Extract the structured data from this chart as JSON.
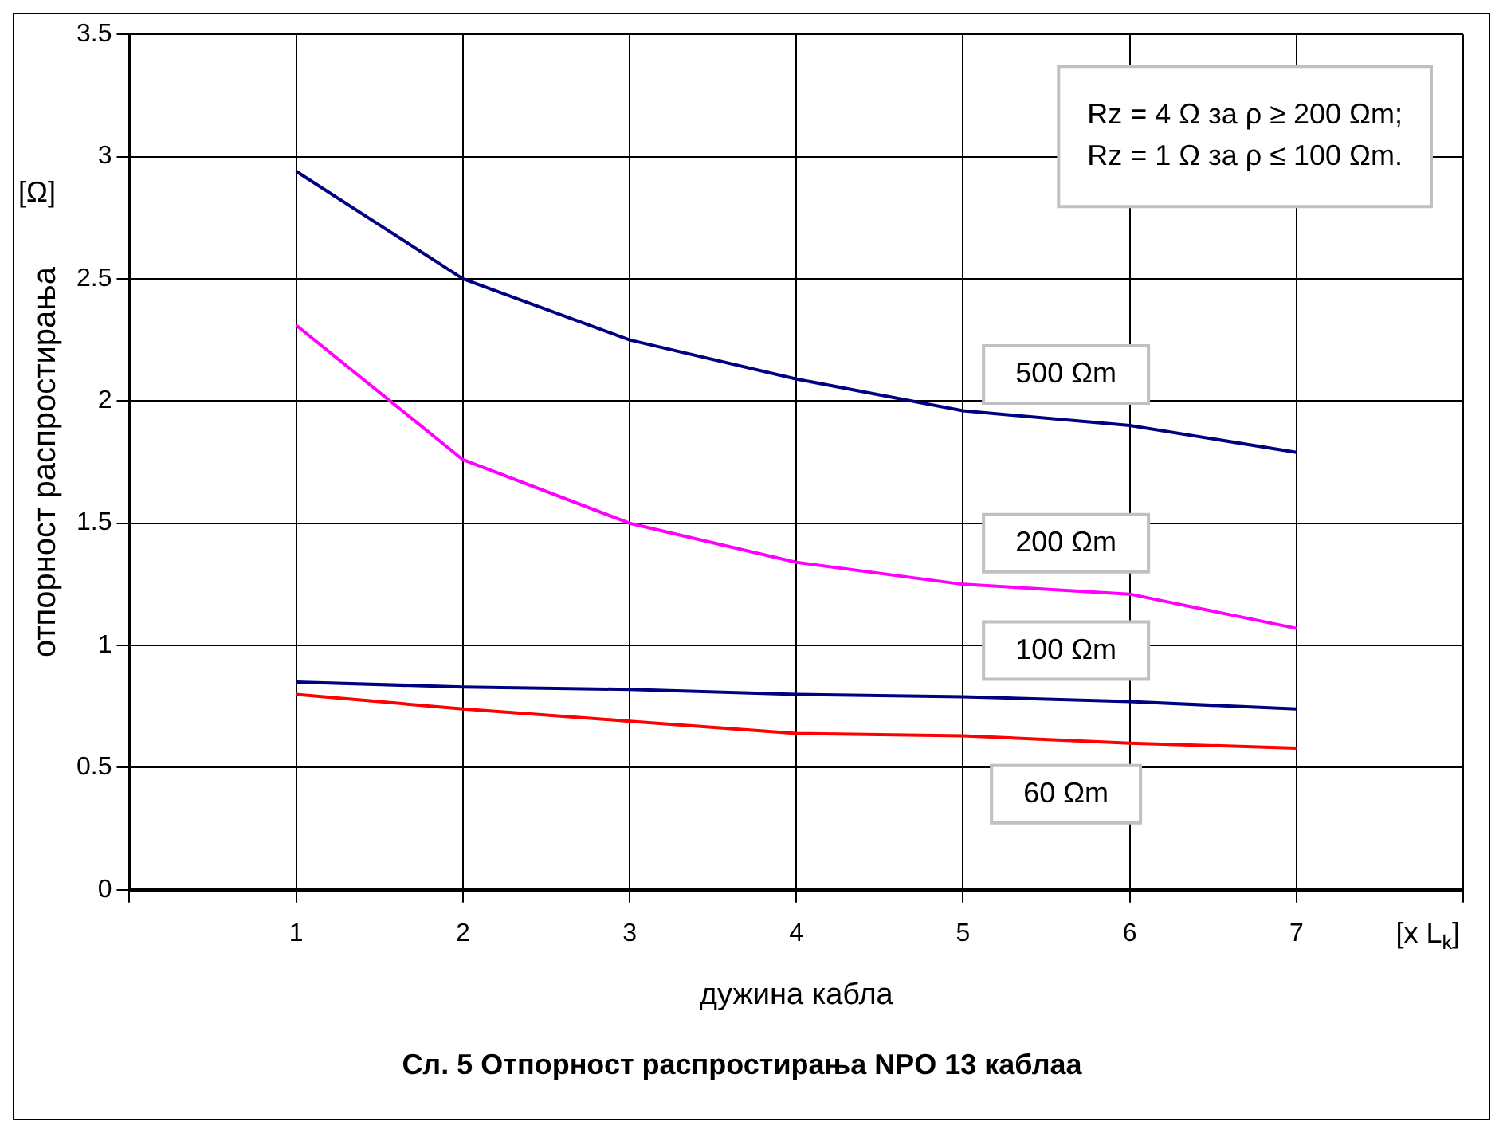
{
  "chart_data": {
    "type": "line",
    "title": "Сл. 5 Отпорност распростирања NPO 13 каблаа",
    "xlabel": "дужина кабла",
    "ylabel": "отпорност распростирања",
    "annotations": [
      "[Ω]",
      "[x L$_{k}$]",
      "Rz = 4 Ω за ρ ≥ 200 Ωm;",
      "Rz = 1 Ω за ρ ≤ 100 Ωm."
    ],
    "x": [
      1,
      2,
      3,
      4,
      5,
      6,
      7
    ],
    "series": [
      {
        "name": "500 Ωm",
        "color": "#000080",
        "values": [
          2.94,
          2.5,
          2.25,
          2.09,
          1.96,
          1.9,
          1.79
        ]
      },
      {
        "name": "200 Ωm",
        "color": "#ff00ff",
        "values": [
          2.31,
          1.76,
          1.5,
          1.34,
          1.25,
          1.21,
          1.07
        ]
      },
      {
        "name": "100 Ωm",
        "color": "#000080",
        "values": [
          0.85,
          0.83,
          0.82,
          0.8,
          0.79,
          0.77,
          0.74
        ]
      },
      {
        "name": "60 Ωm",
        "color": "#ff0000",
        "values": [
          0.8,
          0.74,
          0.69,
          0.64,
          0.63,
          0.6,
          0.58
        ]
      }
    ],
    "xlim": [
      0,
      8
    ],
    "xticks": [
      {
        "value": 0,
        "label": null
      },
      1,
      2,
      3,
      4,
      5,
      6,
      7,
      {
        "value": 8,
        "label": null
      }
    ],
    "ylim": [
      0,
      3.5
    ],
    "yticks": [
      0,
      0.5,
      1,
      1.5,
      2,
      2.5,
      3,
      3.5
    ],
    "grid": true,
    "legend": false,
    "marker": "none",
    "line_style": "solid"
  }
}
